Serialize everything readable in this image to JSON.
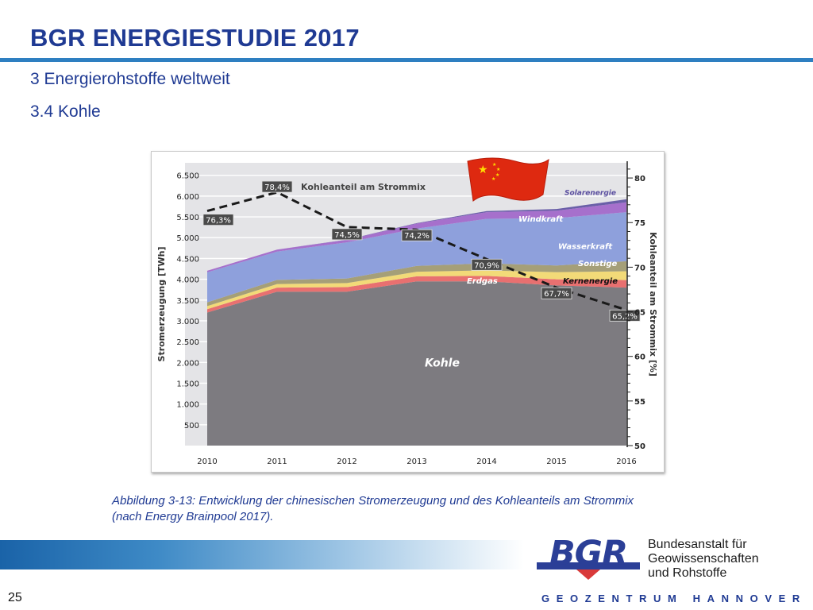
{
  "slide": {
    "title": "BGR ENERGIESTUDIE 2017",
    "heading_1": "3 Energierohstoffe weltweit",
    "heading_2": "3.4 Kohle",
    "caption_line_1": "Abbildung 3-13: Entwicklung der chinesischen Stromerzeugung und des Kohleanteils am Strommix",
    "caption_line_2": "(nach Energy Brainpool 2017).",
    "page_number": "25"
  },
  "footer": {
    "logo_text": "BGR",
    "institution_line_1": "Bundesanstalt für",
    "institution_line_2": "Geowissenschaften",
    "institution_line_3": "und Rohstoffe",
    "tagline": "GEOZENTRUM HANNOVER"
  },
  "colors": {
    "title_blue": "#1f3a93",
    "accent_rule": "#2e7fc1",
    "flag_red": "#de2910",
    "flag_star": "#ffde00"
  },
  "chart_data": {
    "type": "area",
    "stacked": true,
    "x": [
      2010,
      2011,
      2012,
      2013,
      2014,
      2015,
      2016
    ],
    "ylabel": "Stromerzeugung [TWh]",
    "ylim": [
      0,
      6800
    ],
    "yticks": [
      500,
      1000,
      1500,
      2000,
      2500,
      3000,
      3500,
      4000,
      4500,
      5000,
      5500,
      6000,
      6500
    ],
    "ytick_labels": [
      "500",
      "1.000",
      "1.500",
      "2.000",
      "2.500",
      "3.000",
      "3.500",
      "4.000",
      "4.500",
      "5.000",
      "5.500",
      "6.000",
      "6.500"
    ],
    "y2label": "Kohleanteil am Strommix [%]",
    "y2lim": [
      50,
      81.7
    ],
    "y2ticks": [
      50,
      55,
      60,
      65,
      70,
      75,
      80
    ],
    "grid": true,
    "series": [
      {
        "name": "Kohle",
        "color": "#7d7b80",
        "values": [
          3200,
          3700,
          3700,
          3950,
          3950,
          3850,
          3800
        ]
      },
      {
        "name": "Erdgas",
        "color": "#e87070",
        "values": [
          80,
          100,
          110,
          120,
          130,
          150,
          180
        ]
      },
      {
        "name": "Kernenergie",
        "color": "#f2da78",
        "values": [
          75,
          85,
          98,
          111,
          133,
          171,
          213
        ]
      },
      {
        "name": "Sonstige",
        "color": "#a59f78",
        "values": [
          90,
          100,
          110,
          140,
          170,
          160,
          240
        ]
      },
      {
        "name": "Wasserkraft",
        "color": "#8ea0dc",
        "values": [
          720,
          680,
          870,
          900,
          1070,
          1140,
          1180
        ]
      },
      {
        "name": "Windkraft",
        "color": "#a670cc",
        "values": [
          40,
          50,
          60,
          120,
          160,
          180,
          240
        ]
      },
      {
        "name": "Solarenergie",
        "color": "#6a5fa8",
        "values": [
          0,
          0,
          5,
          10,
          25,
          40,
          70
        ]
      }
    ],
    "line_series": {
      "name": "Kohleanteil am Strommix",
      "axis": "y2",
      "values": [
        76.3,
        78.4,
        74.5,
        74.2,
        70.9,
        67.7,
        65.2
      ],
      "labels": [
        "76,3%",
        "78,4%",
        "74,5%",
        "74,2%",
        "70,9%",
        "67,7%",
        "65,2%"
      ]
    }
  }
}
